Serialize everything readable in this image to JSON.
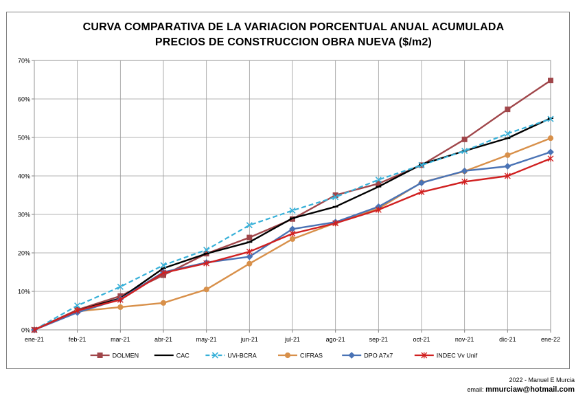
{
  "chart_data": {
    "type": "line",
    "title": [
      "CURVA COMPARATIVA DE LA VARIACION PORCENTUAL ANUAL ACUMULADA",
      "PRECIOS DE CONSTRUCCION OBRA NUEVA  ($/m2)"
    ],
    "xlabel": "",
    "ylabel": "",
    "categories": [
      "ene-21",
      "feb-21",
      "mar-21",
      "abr-21",
      "may-21",
      "jun-21",
      "jul-21",
      "ago-21",
      "sep-21",
      "oct-21",
      "nov-21",
      "dic-21",
      "ene-22"
    ],
    "ylim": [
      0,
      70
    ],
    "yticks": [
      0,
      10,
      20,
      30,
      40,
      50,
      60,
      70
    ],
    "ytick_labels": [
      "0%",
      "10%",
      "20%",
      "30%",
      "40%",
      "50%",
      "60%",
      "70%"
    ],
    "grid": true,
    "legend_position": "bottom",
    "series": [
      {
        "name": "DOLMEN",
        "color": "#a0464a",
        "marker": "square",
        "dash": "solid",
        "values": [
          0,
          5.2,
          8.8,
          14.2,
          19.8,
          24.0,
          28.8,
          35.0,
          38.0,
          42.8,
          49.5,
          57.3,
          64.8
        ]
      },
      {
        "name": "CAC",
        "color": "#000000",
        "marker": "dash",
        "dash": "solid",
        "values": [
          0,
          5.0,
          8.2,
          16.0,
          19.8,
          22.8,
          29.0,
          32.0,
          37.2,
          43.0,
          46.5,
          49.8,
          55.0
        ]
      },
      {
        "name": "UVi-BCRA",
        "color": "#37b0d8",
        "marker": "x",
        "dash": "dashed",
        "values": [
          0,
          6.3,
          11.2,
          16.8,
          20.8,
          27.2,
          31.0,
          34.5,
          39.0,
          42.8,
          46.5,
          51.0,
          54.8
        ]
      },
      {
        "name": "CIFRAS",
        "color": "#d8904a",
        "marker": "circle",
        "dash": "solid",
        "values": [
          0,
          4.8,
          5.9,
          7.0,
          10.5,
          17.2,
          23.6,
          27.8,
          31.5,
          38.3,
          41.2,
          45.4,
          49.8
        ]
      },
      {
        "name": "DPO A7x7",
        "color": "#4a73b5",
        "marker": "diamond",
        "dash": "solid",
        "values": [
          0,
          4.5,
          8.0,
          15.0,
          17.5,
          19.0,
          26.2,
          28.0,
          32.0,
          38.2,
          41.3,
          42.5,
          46.2
        ]
      },
      {
        "name": "INDEC Vv Unif",
        "color": "#d02020",
        "marker": "star",
        "dash": "solid",
        "values": [
          0,
          5.0,
          7.8,
          14.8,
          17.3,
          20.3,
          25.0,
          27.7,
          31.2,
          35.8,
          38.5,
          40.0,
          44.5
        ]
      }
    ]
  },
  "footer": {
    "credit": "2022 - Manuel E Murcia",
    "email_label": "email:",
    "email": "mmurciaw@hotmail.com"
  }
}
